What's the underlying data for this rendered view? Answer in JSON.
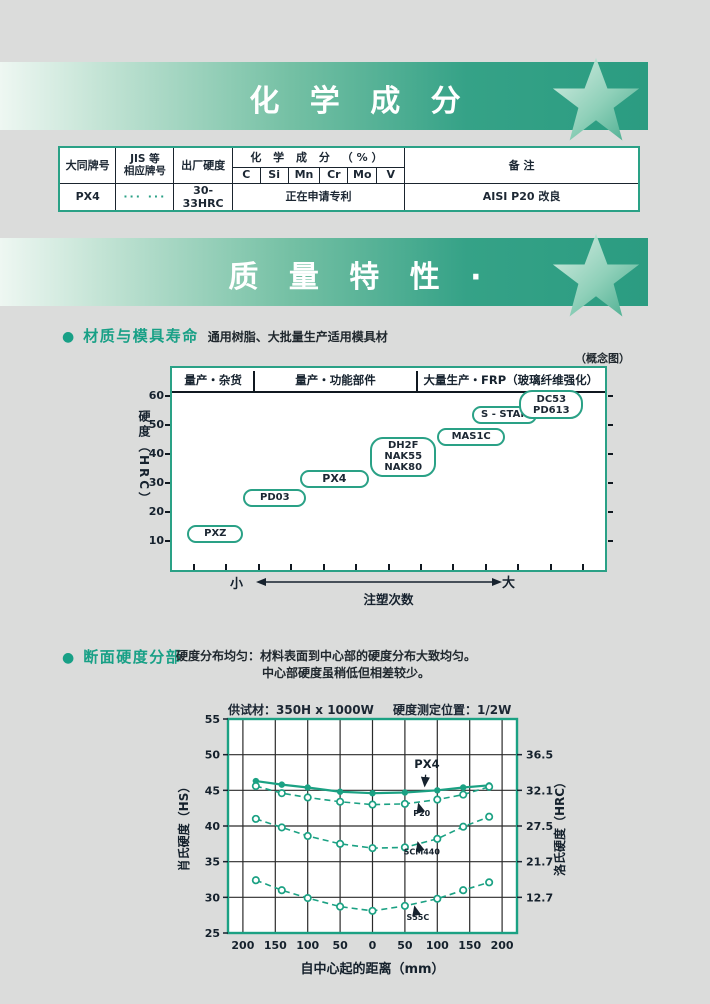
{
  "accent": "#1ba183",
  "banner1": {
    "title": "化 学 成 分"
  },
  "banner2": {
    "title": "质 量 特 性 ·"
  },
  "comp_table": {
    "col_brand": "大同牌号",
    "col_jis_1": "JIS 等",
    "col_jis_2": "相应牌号",
    "col_hardness": "出厂硬度",
    "col_chem": "化 学 成 分 （%）",
    "elements": [
      "C",
      "Si",
      "Mn",
      "Cr",
      "Mo",
      "V"
    ],
    "col_remark": "备 注",
    "row": {
      "brand": "PX4",
      "jis": "··· ···",
      "hardness": "30-33HRC",
      "chem": "正在申请专利",
      "remark": "AISI P20 改良"
    }
  },
  "section1": {
    "title": "材质与模具寿命",
    "subtitle": "通用树脂、大批量生产适用模具材",
    "corner_note": "（概念图）"
  },
  "section2": {
    "title": "断面硬度分部",
    "desc_line1": "硬度分布均匀：材料表面到中心部的硬度分布大致均匀。",
    "desc_line2": "中心部硬度虽稍低但相差较少。"
  },
  "chart_data": [
    {
      "type": "concept-range",
      "title_columns": [
        "量产・杂货",
        "量产・功能部件",
        "大量生产・FRP（玻璃纤维强化）"
      ],
      "column_bounds_pct": [
        0,
        19,
        56.5,
        100
      ],
      "ylabel": "硬度（HRC）",
      "ylim": [
        0,
        70
      ],
      "yticks": [
        10,
        20,
        30,
        40,
        50,
        60
      ],
      "items": [
        {
          "label": "PXZ",
          "x_pct": [
            3.5,
            16.5
          ],
          "hrc": 12.5
        },
        {
          "label": "PD03",
          "x_pct": [
            16.5,
            31
          ],
          "hrc": 25
        },
        {
          "label": "PX4",
          "x_pct": [
            29.5,
            45.5
          ],
          "hrc": 31.5,
          "bold": true
        },
        {
          "label": "DH2F\nNAK55\nNAK80",
          "x_pct": [
            45.8,
            61
          ],
          "hrc": 39
        },
        {
          "label": "MAS1C",
          "x_pct": [
            61.2,
            77
          ],
          "hrc": 46
        },
        {
          "label": "S - STAR",
          "x_pct": [
            69.3,
            84.3
          ],
          "hrc": 53.5
        },
        {
          "label": "DC53\nPD613",
          "x_pct": [
            80.2,
            95
          ],
          "hrc": 57
        }
      ],
      "x_small": "小",
      "x_large": "大",
      "xlabel": "注塑次数"
    },
    {
      "type": "line",
      "title_left": "供试材：350H x 1000W",
      "title_right": "硬度测定位置：1/2W",
      "xlabel": "自中心起的距离（mm）",
      "ylabel_left": "肖氏硬度（HS）",
      "ylabel_right": "洛氏硬度（HRC）",
      "ylim": [
        25,
        55
      ],
      "xlim": [
        -223,
        223
      ],
      "yticks_left": [
        25,
        30,
        35,
        40,
        45,
        50,
        55
      ],
      "yticks_right": [
        {
          "hs": 50,
          "label": "36.5"
        },
        {
          "hs": 45,
          "label": "32.1"
        },
        {
          "hs": 40,
          "label": "27.5"
        },
        {
          "hs": 35,
          "label": "21.7"
        },
        {
          "hs": 30,
          "label": "12.7"
        }
      ],
      "xgrid": [
        -200,
        -150,
        -100,
        -50,
        0,
        50,
        100,
        150,
        200
      ],
      "xtick_labels": [
        "200",
        "150",
        "100",
        "50",
        "0",
        "50",
        "100",
        "150",
        "200"
      ],
      "x_points": [
        -180,
        -140,
        -100,
        -50,
        0,
        50,
        100,
        140,
        180
      ],
      "series": [
        {
          "name": "PX4",
          "style": "solid",
          "marker": "filled",
          "values": [
            46.3,
            45.8,
            45.4,
            44.8,
            44.6,
            44.7,
            45.0,
            45.4,
            45.7
          ]
        },
        {
          "name": "P20",
          "style": "dashed",
          "marker": "open",
          "values": [
            45.6,
            44.6,
            44.0,
            43.4,
            43.0,
            43.1,
            43.7,
            44.4,
            45.5
          ]
        },
        {
          "name": "SCM440",
          "style": "dashed",
          "marker": "open",
          "values": [
            41.0,
            39.8,
            38.6,
            37.5,
            36.9,
            37.0,
            38.2,
            39.9,
            41.3
          ]
        },
        {
          "name": "S55C",
          "style": "dashed",
          "marker": "open",
          "values": [
            32.4,
            31.0,
            29.9,
            28.7,
            28.1,
            28.8,
            29.8,
            31.0,
            32.1
          ]
        }
      ],
      "annotations": [
        {
          "text": "PX4",
          "kind": "big",
          "label_xy": [
            84,
            48.1
          ],
          "arrow_from": [
            82,
            47.2
          ],
          "arrow_to": [
            80.5,
            45.6
          ]
        },
        {
          "text": "P20",
          "kind": "small",
          "label_xy": [
            76,
            41.4
          ],
          "arrow_from": [
            74,
            42.1
          ],
          "arrow_to": [
            71,
            43.1
          ]
        },
        {
          "text": "SCM440",
          "kind": "small",
          "label_xy": [
            76,
            36.0
          ],
          "arrow_from": [
            73,
            36.7
          ],
          "arrow_to": [
            70,
            37.7
          ]
        },
        {
          "text": "S55C",
          "kind": "small",
          "label_xy": [
            70,
            26.8
          ],
          "arrow_from": [
            68,
            27.5
          ],
          "arrow_to": [
            65,
            28.7
          ]
        }
      ]
    }
  ]
}
